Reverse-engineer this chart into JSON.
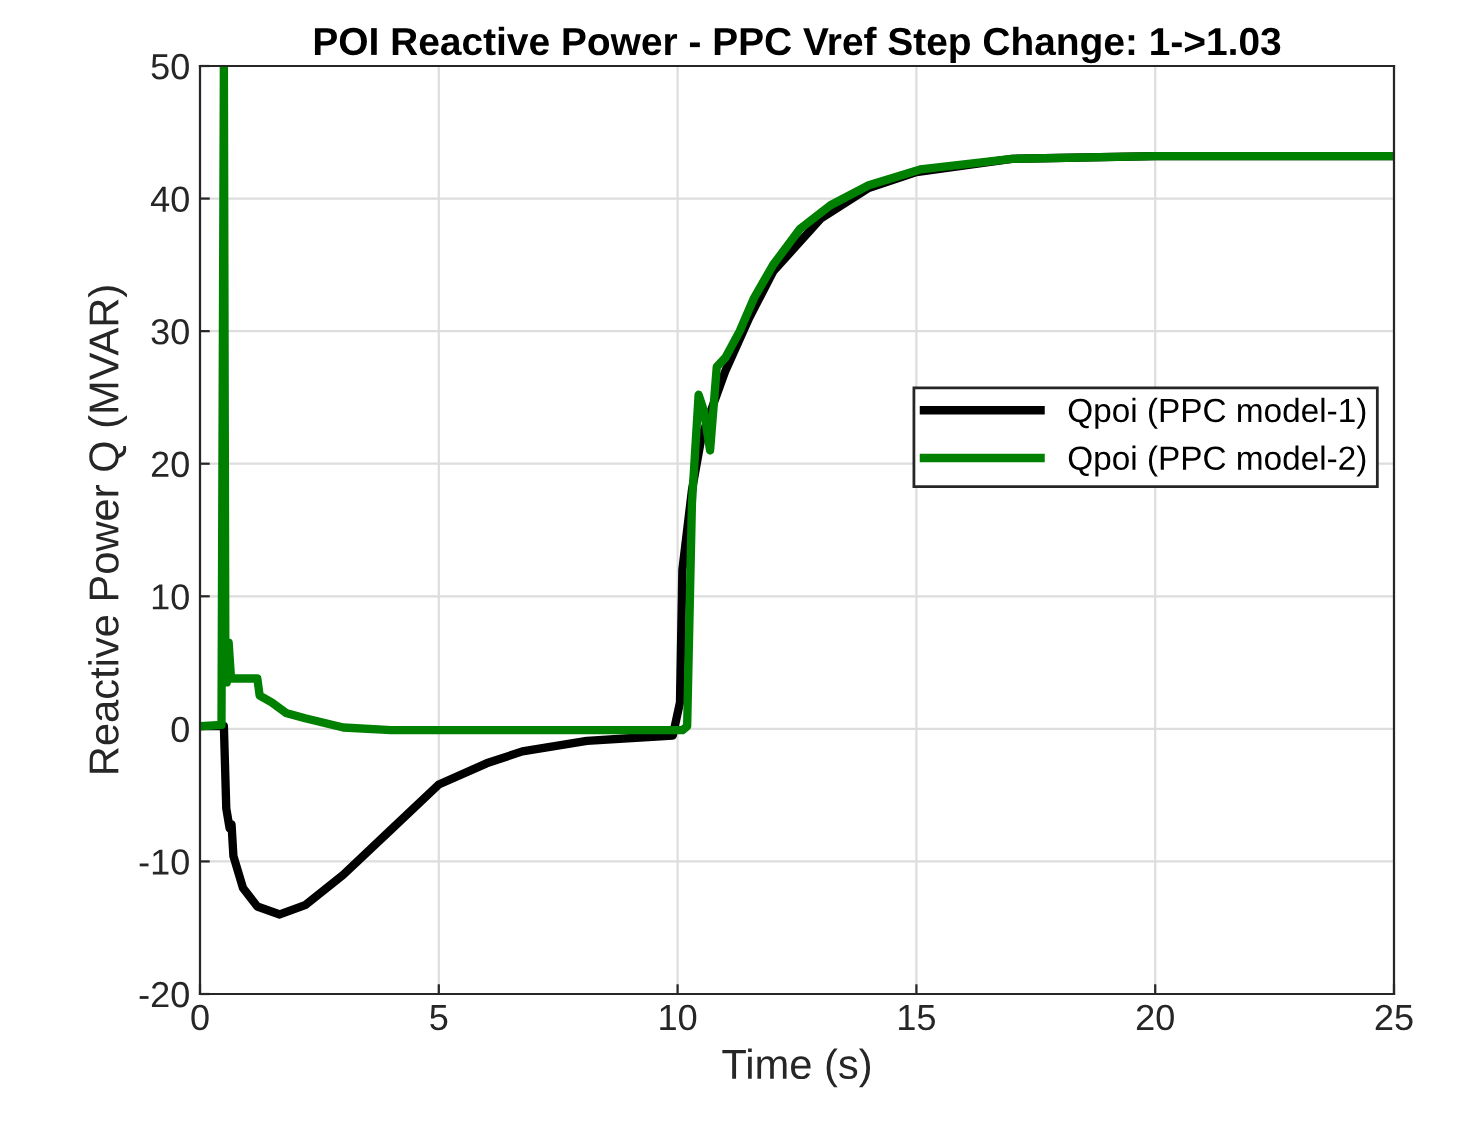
{
  "chart_data": {
    "type": "line",
    "title": "POI Reactive Power - PPC Vref Step Change: 1->1.03",
    "xlabel": "Time (s)",
    "ylabel": "Reactive Power Q (MVAR)",
    "xlim": [
      0,
      25
    ],
    "ylim": [
      -20,
      50
    ],
    "xticks": [
      0,
      5,
      10,
      15,
      20,
      25
    ],
    "yticks": [
      -20,
      -10,
      0,
      10,
      20,
      30,
      40,
      50
    ],
    "grid": true,
    "legend": "right",
    "line_style": "solid",
    "series": [
      {
        "name": "Qpoi (PPC model-1)",
        "color": "#000000",
        "x": [
          0,
          0.5,
          0.55,
          0.62,
          0.66,
          0.7,
          0.9,
          1.2,
          1.67,
          2.2,
          3,
          4,
          5,
          6,
          6.75,
          8.1,
          9.9,
          10.05,
          10.1,
          10.3,
          10.5,
          11,
          11.5,
          12,
          13,
          14,
          15,
          17,
          20,
          25
        ],
        "values": [
          0.2,
          0.2,
          -6,
          -7.5,
          -7.2,
          -9.6,
          -12,
          -13.4,
          -14,
          -13.3,
          -11,
          -7.6,
          -4.2,
          -2.6,
          -1.7,
          -0.9,
          -0.5,
          2,
          12,
          18,
          22,
          27,
          31,
          34.5,
          38.5,
          40.8,
          42,
          43,
          43.2,
          43.2
        ]
      },
      {
        "name": "Qpoi (PPC model-2)",
        "color": "#008000",
        "x": [
          0,
          0.45,
          0.5,
          0.53,
          0.56,
          0.6,
          0.65,
          1.2,
          1.25,
          1.5,
          1.8,
          2.2,
          3,
          4,
          6,
          8,
          10.1,
          10.2,
          10.3,
          10.44,
          10.55,
          10.68,
          10.82,
          11,
          11.3,
          11.6,
          12,
          12.56,
          13.2,
          14,
          15.08,
          17,
          20,
          25
        ],
        "values": [
          0.2,
          0.3,
          50,
          6.5,
          3.5,
          6.5,
          3.8,
          3.8,
          2.5,
          2,
          1.2,
          0.8,
          0.1,
          -0.1,
          -0.1,
          -0.1,
          -0.1,
          0.2,
          17,
          25.2,
          24,
          21,
          27.3,
          28,
          30,
          32.5,
          35,
          37.7,
          39.5,
          41,
          42.2,
          43,
          43.2,
          43.2
        ]
      }
    ]
  }
}
